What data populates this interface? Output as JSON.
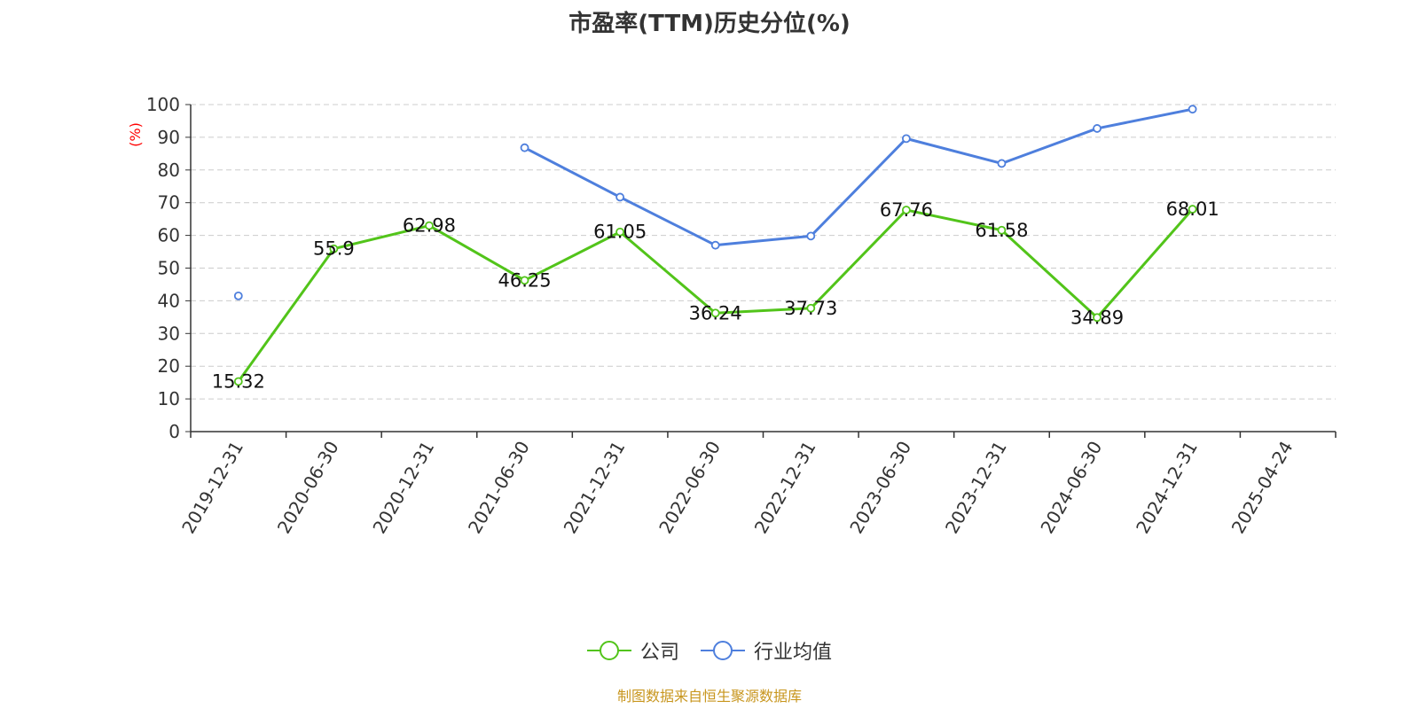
{
  "chart_data": {
    "type": "line",
    "title": "市盈率(TTM)历史分位(%)",
    "ylabel": "(%)",
    "xlabel": "",
    "categories": [
      "2019-12-31",
      "2020-06-30",
      "2020-12-31",
      "2021-06-30",
      "2021-12-31",
      "2022-06-30",
      "2022-12-31",
      "2023-06-30",
      "2023-12-31",
      "2024-06-30",
      "2024-12-31",
      "2025-04-24"
    ],
    "series": [
      {
        "name": "公司",
        "color": "#52c41a",
        "values": [
          15.32,
          55.9,
          62.98,
          46.25,
          61.05,
          36.24,
          37.73,
          67.76,
          61.58,
          34.89,
          68.01,
          null
        ],
        "data_labels": [
          "15.32",
          "55.9",
          "62.98",
          "46.25",
          "61.05",
          "36.24",
          "37.73",
          "67.76",
          "61.58",
          "34.89",
          "68.01",
          null
        ]
      },
      {
        "name": "行业均值",
        "color": "#4e7fdd",
        "values": [
          41.5,
          null,
          null,
          86.8,
          71.7,
          57.0,
          59.8,
          89.6,
          82.0,
          92.7,
          98.6,
          null
        ]
      }
    ],
    "ylim": [
      0,
      100
    ],
    "yticks": [
      "0",
      "10",
      "20",
      "30",
      "40",
      "50",
      "60",
      "70",
      "80",
      "90",
      "100"
    ],
    "grid": true,
    "legend_position": "bottom"
  },
  "source_text": "制图数据来自恒生聚源数据库"
}
